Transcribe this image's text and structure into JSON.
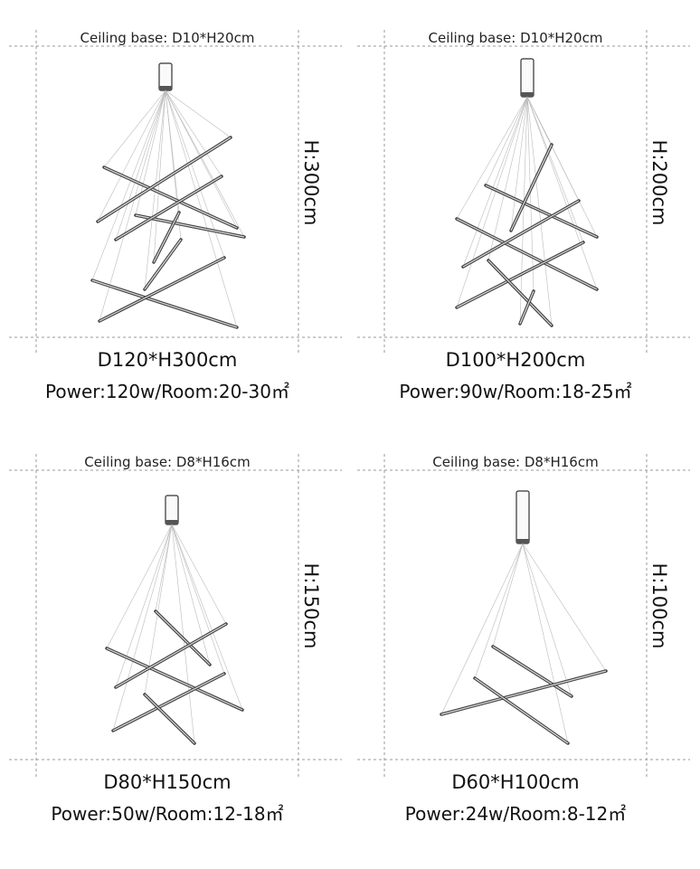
{
  "panels": [
    {
      "ceiling_base": "Ceiling base: D10*H20cm",
      "height": "H:300cm",
      "size": "D120*H300cm",
      "power": "Power:120w/Room:20-30㎡"
    },
    {
      "ceiling_base": "Ceiling base: D10*H20cm",
      "height": "H:200cm",
      "size": "D100*H200cm",
      "power": "Power:90w/Room:18-25㎡"
    },
    {
      "ceiling_base": "Ceiling base: D8*H16cm",
      "height": "H:150cm",
      "size": "D80*H150cm",
      "power": "Power:50w/Room:12-18㎡"
    },
    {
      "ceiling_base": "Ceiling base: D8*H16cm",
      "height": "H:100cm",
      "size": "D60*H100cm",
      "power": "Power:24w/Room:8-12㎡"
    }
  ]
}
